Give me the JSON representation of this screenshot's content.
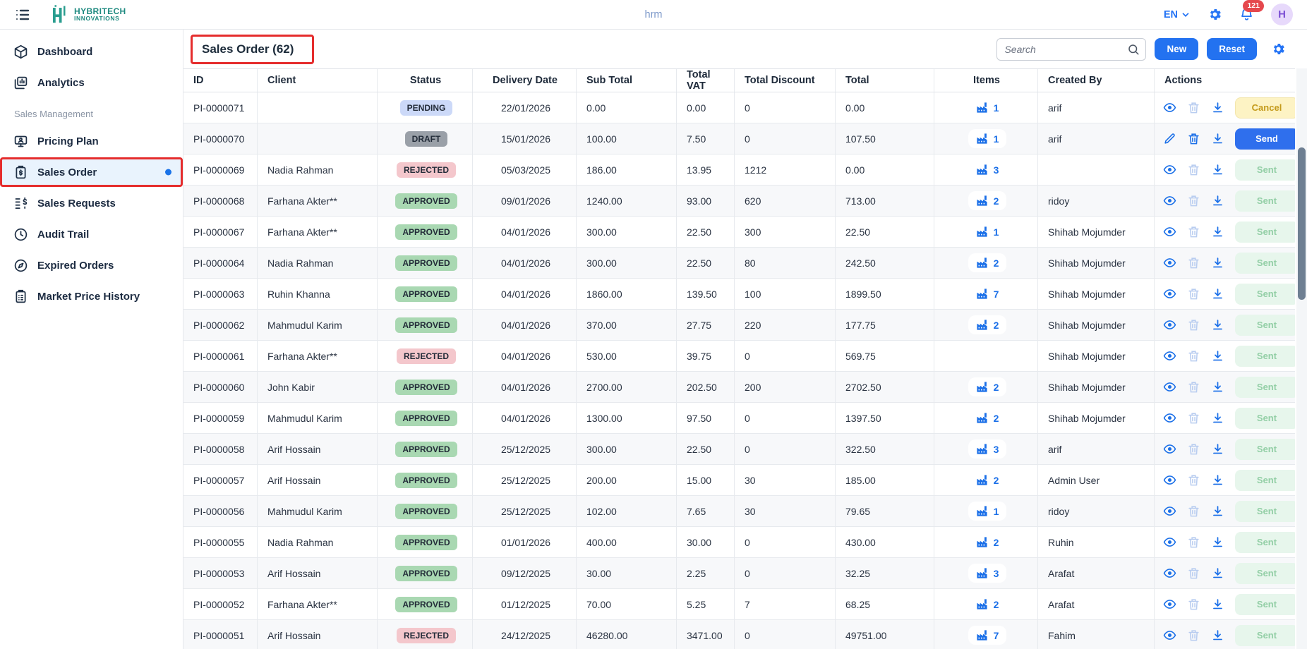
{
  "topbar": {
    "app_title": "hrm",
    "language": "EN",
    "notification_count": "121",
    "avatar_initial": "H",
    "logo_line1": "HYBRITECH",
    "logo_line2": "INNOVATIONS"
  },
  "sidebar": {
    "section_label": "Sales Management",
    "items": [
      {
        "label": "Dashboard"
      },
      {
        "label": "Analytics"
      },
      {
        "label": "Pricing Plan"
      },
      {
        "label": "Sales Order",
        "active": true
      },
      {
        "label": "Sales Requests"
      },
      {
        "label": "Audit Trail"
      },
      {
        "label": "Expired Orders"
      },
      {
        "label": "Market Price History"
      }
    ]
  },
  "toolbar": {
    "title": "Sales Order (62)",
    "search_placeholder": "Search",
    "new_label": "New",
    "reset_label": "Reset"
  },
  "table": {
    "columns": [
      "ID",
      "Client",
      "Status",
      "Delivery Date",
      "Sub Total",
      "Total VAT",
      "Total Discount",
      "Total",
      "Items",
      "Created By",
      "Actions"
    ],
    "rows": [
      {
        "id": "PI-0000071",
        "client": "",
        "status": "PENDING",
        "delivery_date": "22/01/2026",
        "sub_total": "0.00",
        "total_vat": "0.00",
        "total_discount": "0",
        "total": "0.00",
        "items": "1",
        "created_by": "arif",
        "row_icon": "eye",
        "delete_enabled": false,
        "action": "Cancel"
      },
      {
        "id": "PI-0000070",
        "client": "",
        "status": "DRAFT",
        "delivery_date": "15/01/2026",
        "sub_total": "100.00",
        "total_vat": "7.50",
        "total_discount": "0",
        "total": "107.50",
        "items": "1",
        "created_by": "arif",
        "row_icon": "pencil",
        "delete_enabled": true,
        "action": "Send"
      },
      {
        "id": "PI-0000069",
        "client": "Nadia Rahman",
        "status": "REJECTED",
        "delivery_date": "05/03/2025",
        "sub_total": "186.00",
        "total_vat": "13.95",
        "total_discount": "1212",
        "total": "0.00",
        "items": "3",
        "created_by": "",
        "row_icon": "eye",
        "delete_enabled": false,
        "action": "Sent"
      },
      {
        "id": "PI-0000068",
        "client": "Farhana Akter**",
        "status": "APPROVED",
        "delivery_date": "09/01/2026",
        "sub_total": "1240.00",
        "total_vat": "93.00",
        "total_discount": "620",
        "total": "713.00",
        "items": "2",
        "created_by": "ridoy",
        "row_icon": "eye",
        "delete_enabled": false,
        "action": "Sent"
      },
      {
        "id": "PI-0000067",
        "client": "Farhana Akter**",
        "status": "APPROVED",
        "delivery_date": "04/01/2026",
        "sub_total": "300.00",
        "total_vat": "22.50",
        "total_discount": "300",
        "total": "22.50",
        "items": "1",
        "created_by": "Shihab Mojumder",
        "row_icon": "eye",
        "delete_enabled": false,
        "action": "Sent"
      },
      {
        "id": "PI-0000064",
        "client": "Nadia Rahman",
        "status": "APPROVED",
        "delivery_date": "04/01/2026",
        "sub_total": "300.00",
        "total_vat": "22.50",
        "total_discount": "80",
        "total": "242.50",
        "items": "2",
        "created_by": "Shihab Mojumder",
        "row_icon": "eye",
        "delete_enabled": false,
        "action": "Sent"
      },
      {
        "id": "PI-0000063",
        "client": "Ruhin Khanna",
        "status": "APPROVED",
        "delivery_date": "04/01/2026",
        "sub_total": "1860.00",
        "total_vat": "139.50",
        "total_discount": "100",
        "total": "1899.50",
        "items": "7",
        "created_by": "Shihab Mojumder",
        "row_icon": "eye",
        "delete_enabled": false,
        "action": "Sent"
      },
      {
        "id": "PI-0000062",
        "client": "Mahmudul Karim",
        "status": "APPROVED",
        "delivery_date": "04/01/2026",
        "sub_total": "370.00",
        "total_vat": "27.75",
        "total_discount": "220",
        "total": "177.75",
        "items": "2",
        "created_by": "Shihab Mojumder",
        "row_icon": "eye",
        "delete_enabled": false,
        "action": "Sent"
      },
      {
        "id": "PI-0000061",
        "client": "Farhana Akter**",
        "status": "REJECTED",
        "delivery_date": "04/01/2026",
        "sub_total": "530.00",
        "total_vat": "39.75",
        "total_discount": "0",
        "total": "569.75",
        "items": null,
        "created_by": "Shihab Mojumder",
        "row_icon": "eye",
        "delete_enabled": false,
        "action": "Sent"
      },
      {
        "id": "PI-0000060",
        "client": "John Kabir",
        "status": "APPROVED",
        "delivery_date": "04/01/2026",
        "sub_total": "2700.00",
        "total_vat": "202.50",
        "total_discount": "200",
        "total": "2702.50",
        "items": "2",
        "created_by": "Shihab Mojumder",
        "row_icon": "eye",
        "delete_enabled": false,
        "action": "Sent"
      },
      {
        "id": "PI-0000059",
        "client": "Mahmudul Karim",
        "status": "APPROVED",
        "delivery_date": "04/01/2026",
        "sub_total": "1300.00",
        "total_vat": "97.50",
        "total_discount": "0",
        "total": "1397.50",
        "items": "2",
        "created_by": "Shihab Mojumder",
        "row_icon": "eye",
        "delete_enabled": false,
        "action": "Sent"
      },
      {
        "id": "PI-0000058",
        "client": "Arif Hossain",
        "status": "APPROVED",
        "delivery_date": "25/12/2025",
        "sub_total": "300.00",
        "total_vat": "22.50",
        "total_discount": "0",
        "total": "322.50",
        "items": "3",
        "created_by": "arif",
        "row_icon": "eye",
        "delete_enabled": false,
        "action": "Sent"
      },
      {
        "id": "PI-0000057",
        "client": "Arif Hossain",
        "status": "APPROVED",
        "delivery_date": "25/12/2025",
        "sub_total": "200.00",
        "total_vat": "15.00",
        "total_discount": "30",
        "total": "185.00",
        "items": "2",
        "created_by": "Admin User",
        "row_icon": "eye",
        "delete_enabled": false,
        "action": "Sent"
      },
      {
        "id": "PI-0000056",
        "client": "Mahmudul Karim",
        "status": "APPROVED",
        "delivery_date": "25/12/2025",
        "sub_total": "102.00",
        "total_vat": "7.65",
        "total_discount": "30",
        "total": "79.65",
        "items": "1",
        "created_by": "ridoy",
        "row_icon": "eye",
        "delete_enabled": false,
        "action": "Sent"
      },
      {
        "id": "PI-0000055",
        "client": "Nadia Rahman",
        "status": "APPROVED",
        "delivery_date": "01/01/2026",
        "sub_total": "400.00",
        "total_vat": "30.00",
        "total_discount": "0",
        "total": "430.00",
        "items": "2",
        "created_by": "Ruhin",
        "row_icon": "eye",
        "delete_enabled": false,
        "action": "Sent"
      },
      {
        "id": "PI-0000053",
        "client": "Arif Hossain",
        "status": "APPROVED",
        "delivery_date": "09/12/2025",
        "sub_total": "30.00",
        "total_vat": "2.25",
        "total_discount": "0",
        "total": "32.25",
        "items": "3",
        "created_by": "Arafat",
        "row_icon": "eye",
        "delete_enabled": false,
        "action": "Sent"
      },
      {
        "id": "PI-0000052",
        "client": "Farhana Akter**",
        "status": "APPROVED",
        "delivery_date": "01/12/2025",
        "sub_total": "70.00",
        "total_vat": "5.25",
        "total_discount": "7",
        "total": "68.25",
        "items": "2",
        "created_by": "Arafat",
        "row_icon": "eye",
        "delete_enabled": false,
        "action": "Sent"
      },
      {
        "id": "PI-0000051",
        "client": "Arif Hossain",
        "status": "REJECTED",
        "delivery_date": "24/12/2025",
        "sub_total": "46280.00",
        "total_vat": "3471.00",
        "total_discount": "0",
        "total": "49751.00",
        "items": "7",
        "created_by": "Fahim",
        "row_icon": "eye",
        "delete_enabled": false,
        "action": "Sent"
      }
    ]
  },
  "colors": {
    "accent_blue": "#2372f0",
    "brand_teal": "#1f8a80",
    "annotation_red": "#e52d2d",
    "badge_pending": "#ccd9f8",
    "badge_draft": "#9aa0a8",
    "badge_rejected": "#f4c7cc",
    "badge_approved": "#a9d8b2",
    "notification_red": "#e5484d"
  }
}
